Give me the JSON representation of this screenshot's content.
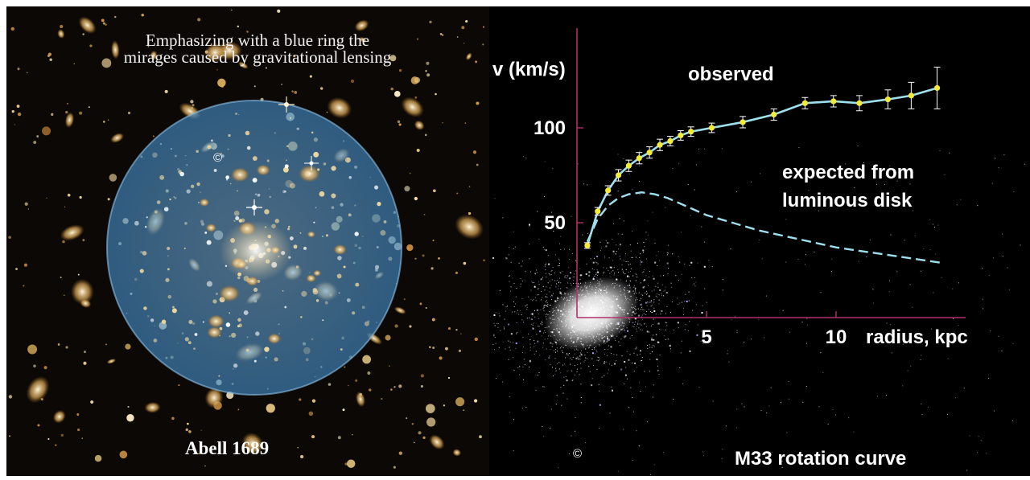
{
  "left_panel": {
    "caption_line1": "Emphasizing with a blue ring the",
    "caption_line2": "mirages caused by gravitational lensing",
    "cluster_label": "Abell 1689",
    "credit_symbol": "©",
    "ring_color": "#5aa7e0",
    "background_color": "#0b0805"
  },
  "right_panel": {
    "credit_symbol": "©",
    "background_color": "#000000",
    "axis_color": "#b0306a",
    "observed_color": "#f3ea3a",
    "fit_color": "#9fe0ef"
  },
  "chart_data": {
    "type": "line",
    "title": "M33 rotation curve",
    "xlabel": "radius, kpc",
    "ylabel": "v (km/s)",
    "xlim": [
      0,
      16
    ],
    "ylim": [
      0,
      140
    ],
    "x_ticks": [
      5,
      10
    ],
    "y_ticks": [
      50,
      100
    ],
    "series": [
      {
        "name": "observed",
        "style": "points-with-errorbars-and-fit",
        "x": [
          0.4,
          0.8,
          1.2,
          1.6,
          2.0,
          2.4,
          2.8,
          3.2,
          3.6,
          4.0,
          4.4,
          5.2,
          6.4,
          7.6,
          8.8,
          9.9,
          10.9,
          12.0,
          12.9,
          13.9
        ],
        "y": [
          38,
          56,
          67,
          75,
          80,
          84,
          87,
          91,
          93,
          96,
          98,
          100,
          103,
          107,
          113,
          114,
          113,
          115,
          117,
          121
        ],
        "err": [
          1.5,
          2,
          2.5,
          3,
          3,
          3,
          3,
          3,
          2.5,
          2.5,
          2.5,
          2.5,
          3,
          3,
          3,
          3,
          4,
          5,
          7,
          11
        ]
      },
      {
        "name": "expected from luminous disk",
        "style": "dashed",
        "x": [
          0.4,
          0.8,
          1.2,
          1.6,
          2.0,
          2.5,
          3.0,
          3.5,
          4.0,
          4.5,
          5.0,
          6.0,
          7.0,
          8.0,
          9.0,
          10.0,
          11.0,
          12.0,
          13.0,
          14.0
        ],
        "y": [
          40,
          52,
          59,
          63,
          65,
          66,
          65,
          63,
          60,
          57,
          54,
          50,
          46,
          43,
          40,
          37,
          35,
          33,
          31,
          29
        ]
      }
    ],
    "annotations": [
      "observed",
      "expected from luminous disk"
    ]
  }
}
